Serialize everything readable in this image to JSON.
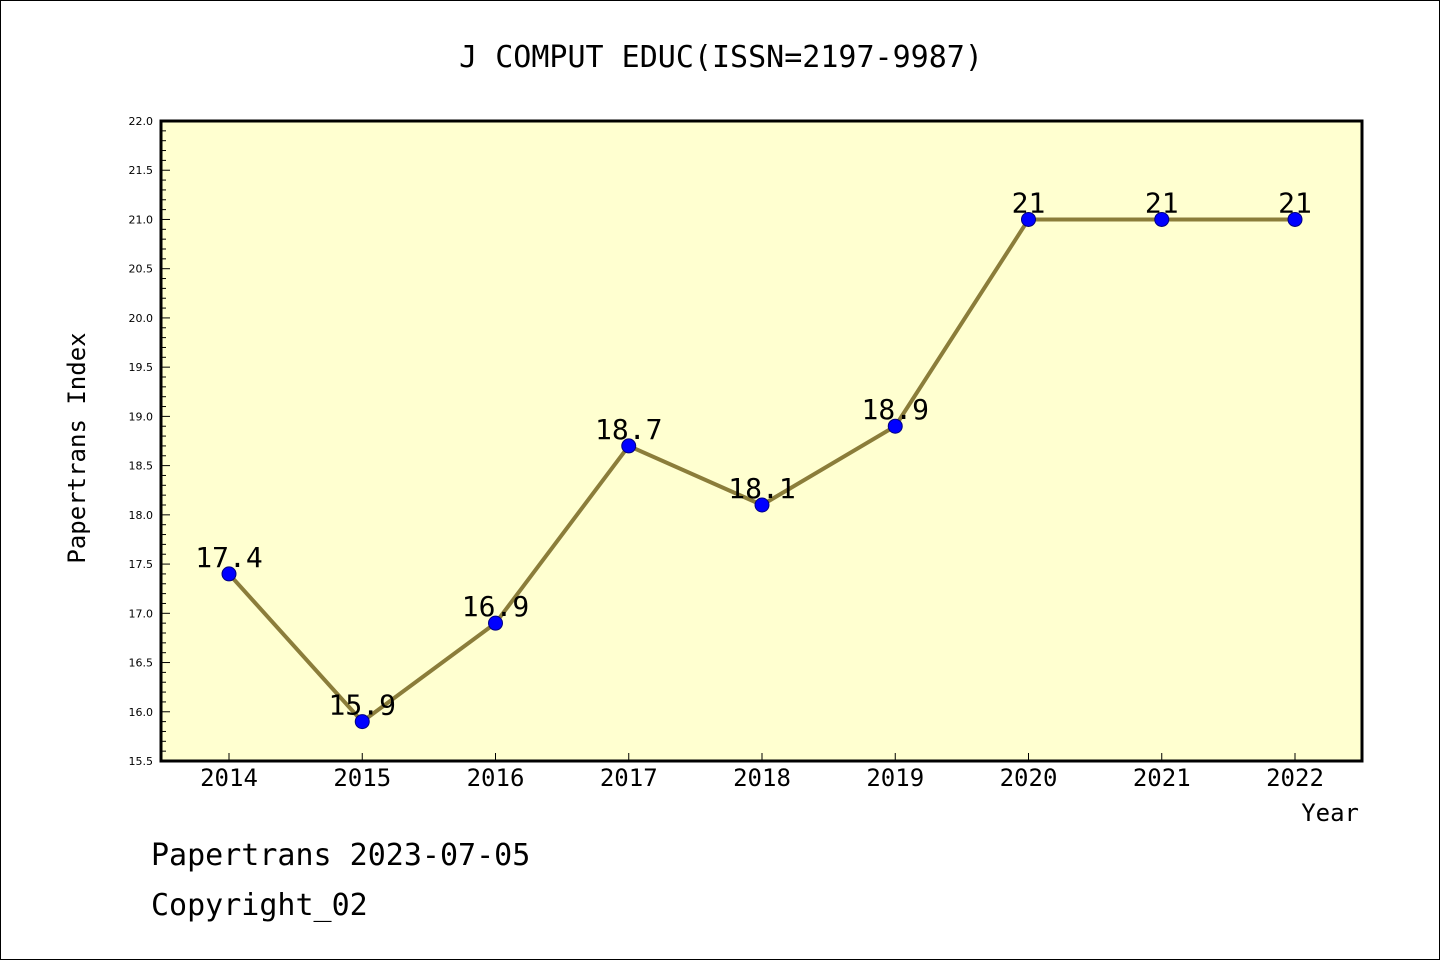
{
  "chart_data": {
    "type": "line",
    "title": "J COMPUT EDUC(ISSN=2197-9987)",
    "xlabel": "Year",
    "ylabel": "Papertrans Index",
    "categories": [
      "2014",
      "2015",
      "2016",
      "2017",
      "2018",
      "2019",
      "2020",
      "2021",
      "2022"
    ],
    "values": [
      17.4,
      15.9,
      16.9,
      18.7,
      18.1,
      18.9,
      21,
      21,
      21
    ],
    "data_labels": [
      "17.4",
      "15.9",
      "16.9",
      "18.7",
      "18.1",
      "18.9",
      "21",
      "21",
      "21"
    ],
    "ylim": [
      15.5,
      22.0
    ],
    "y_ticks": [
      "15.5",
      "16.0",
      "16.5",
      "17.0",
      "17.5",
      "18.0",
      "18.5",
      "19.0",
      "19.5",
      "20.0",
      "20.5",
      "21.0",
      "21.5",
      "22.0"
    ],
    "grid": false,
    "plot_background": "#ffffd0",
    "line_color": "#8b7d3a",
    "marker_color": "#0000ff"
  },
  "footer": {
    "line1": "Papertrans 2023-07-05",
    "line2": "Copyright_02"
  }
}
